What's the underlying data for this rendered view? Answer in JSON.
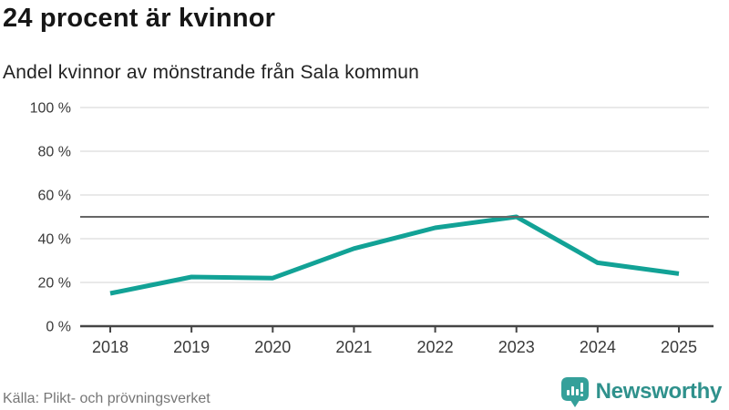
{
  "header": {
    "title": "24 procent är kvinnor",
    "subtitle": "Andel kvinnor av mönstrande från Sala kommun"
  },
  "chart_data": {
    "type": "line",
    "title": "24 procent är kvinnor",
    "subtitle": "Andel kvinnor av mönstrande från Sala kommun",
    "x": [
      "2018",
      "2019",
      "2020",
      "2021",
      "2022",
      "2023",
      "2024",
      "2025"
    ],
    "series": [
      {
        "name": "Andel kvinnor av mönstrande",
        "values": [
          15,
          22.5,
          22,
          35.5,
          45,
          50,
          29,
          24
        ]
      }
    ],
    "xlabel": "",
    "ylabel": "",
    "ylim": [
      0,
      100
    ],
    "yticks": [
      0,
      20,
      40,
      60,
      80,
      100
    ],
    "ytick_suffix": " %",
    "reference_line": {
      "value": 50
    },
    "grid": true,
    "legend": "none"
  },
  "footer": {
    "source": "Källa: Plikt- och prövningsverket",
    "brand": "Newsworthy"
  },
  "colors": {
    "line": "#12a296",
    "reference": "#666666",
    "grid": "#e2e2e2",
    "axis": "#454545",
    "tick_label": "#3a3a3a",
    "brand_text": "#2f918c",
    "brand_icon": "#35a09a"
  }
}
